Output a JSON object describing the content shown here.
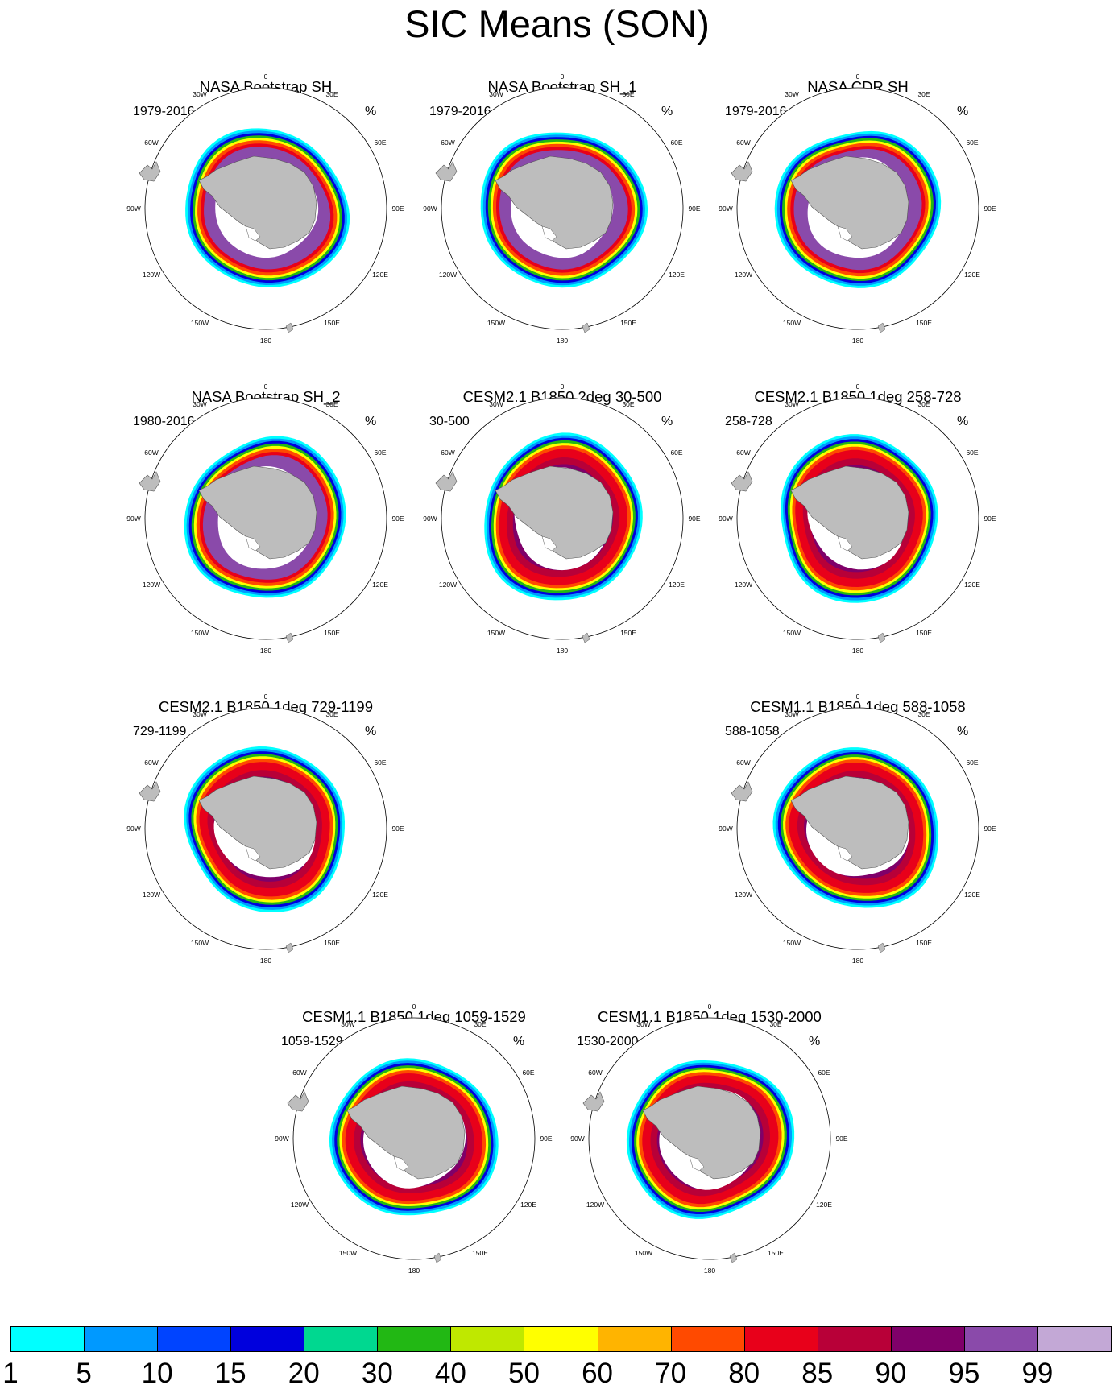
{
  "title": "SIC Means (SON)",
  "units_label": "%",
  "longitude_labels": [
    "0",
    "30E",
    "60E",
    "90E",
    "120E",
    "150E",
    "180",
    "150W",
    "120W",
    "90W",
    "60W",
    "30W"
  ],
  "panels": [
    {
      "title": "NASA Bootstrap SH",
      "period": "1979-2016",
      "style": "obs"
    },
    {
      "title": "NASA Bootstrap SH_1",
      "period": "1979-2016",
      "style": "obs"
    },
    {
      "title": "NASA CDR SH",
      "period": "1979-2016",
      "style": "obs"
    },
    {
      "title": "NASA Bootstrap SH_2",
      "period": "1980-2016",
      "style": "obs"
    },
    {
      "title": "CESM2.1 B1850 2deg 30-500",
      "period": "30-500",
      "style": "model"
    },
    {
      "title": "CESM2.1 B1850 1deg 258-728",
      "period": "258-728",
      "style": "model"
    },
    {
      "title": "CESM2.1 B1850 1deg 729-1199",
      "period": "729-1199",
      "style": "model"
    },
    {
      "title": "CESM1.1 B1850 1deg 588-1058",
      "period": "588-1058",
      "style": "model"
    },
    {
      "title": "CESM1.1 B1850 1deg 1059-1529",
      "period": "1059-1529",
      "style": "model"
    },
    {
      "title": "CESM1.1 B1850 1deg 1530-2000",
      "period": "1530-2000",
      "style": "model"
    }
  ],
  "colorbar": {
    "colors": [
      "#00ffff",
      "#0099ff",
      "#0044ff",
      "#0000dd",
      "#00d890",
      "#22b814",
      "#bfe800",
      "#ffff00",
      "#ffb400",
      "#ff4a00",
      "#e8001a",
      "#b80038",
      "#7f0069",
      "#8a4aaa",
      "#c3a8d6"
    ],
    "labels": [
      "1",
      "5",
      "10",
      "15",
      "20",
      "30",
      "40",
      "50",
      "60",
      "70",
      "80",
      "85",
      "90",
      "95",
      "99"
    ]
  }
}
